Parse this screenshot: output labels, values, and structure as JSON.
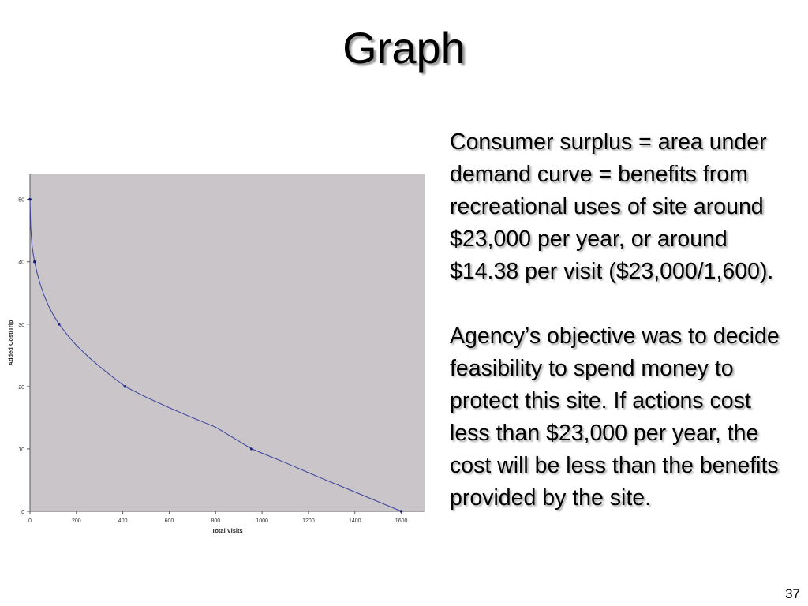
{
  "slide": {
    "title": "Graph",
    "paragraphs": [
      "Consumer surplus = area under demand curve = benefits from recreational uses of site around $23,000 per year, or around $14.38 per visit ($23,000/1,600).",
      "Agency’s objective was to decide feasibility to spend money to protect this site.  If actions cost less than $23,000 per year, the cost will be less than the benefits provided by the site."
    ],
    "page_number": "37"
  },
  "chart_data": {
    "type": "line",
    "title": "",
    "xlabel": "Total Visits",
    "ylabel": "Added Cost/Trip",
    "xlim": [
      0,
      1700
    ],
    "ylim": [
      0,
      54
    ],
    "xticks": [
      0,
      200,
      400,
      600,
      800,
      1000,
      1200,
      1400,
      1600
    ],
    "yticks": [
      0,
      10,
      20,
      30,
      40,
      50
    ],
    "grid": false,
    "legend": "none",
    "series": [
      {
        "markers": {
          "x": [
            0,
            20,
            125,
            410,
            955,
            1600
          ],
          "y": [
            50,
            40,
            30,
            20,
            10,
            0
          ]
        },
        "curve": {
          "x": [
            0,
            3,
            8,
            14,
            20,
            30,
            45,
            60,
            80,
            100,
            125,
            160,
            200,
            250,
            300,
            350,
            410,
            500,
            600,
            700,
            800,
            955,
            1100,
            1250,
            1400,
            1600
          ],
          "y": [
            50,
            45.5,
            42.8,
            41.2,
            40,
            38.3,
            36.3,
            34.7,
            32.9,
            31.5,
            30,
            28.3,
            26.6,
            24.8,
            23.2,
            21.7,
            20,
            18.3,
            16.6,
            15,
            13.5,
            10,
            7.8,
            5.4,
            3.1,
            0
          ]
        }
      }
    ],
    "colors": {
      "plot_background": "#c9c5c9",
      "line": "#3a3f9c",
      "marker": "#161a78",
      "axis": "#555555"
    }
  }
}
